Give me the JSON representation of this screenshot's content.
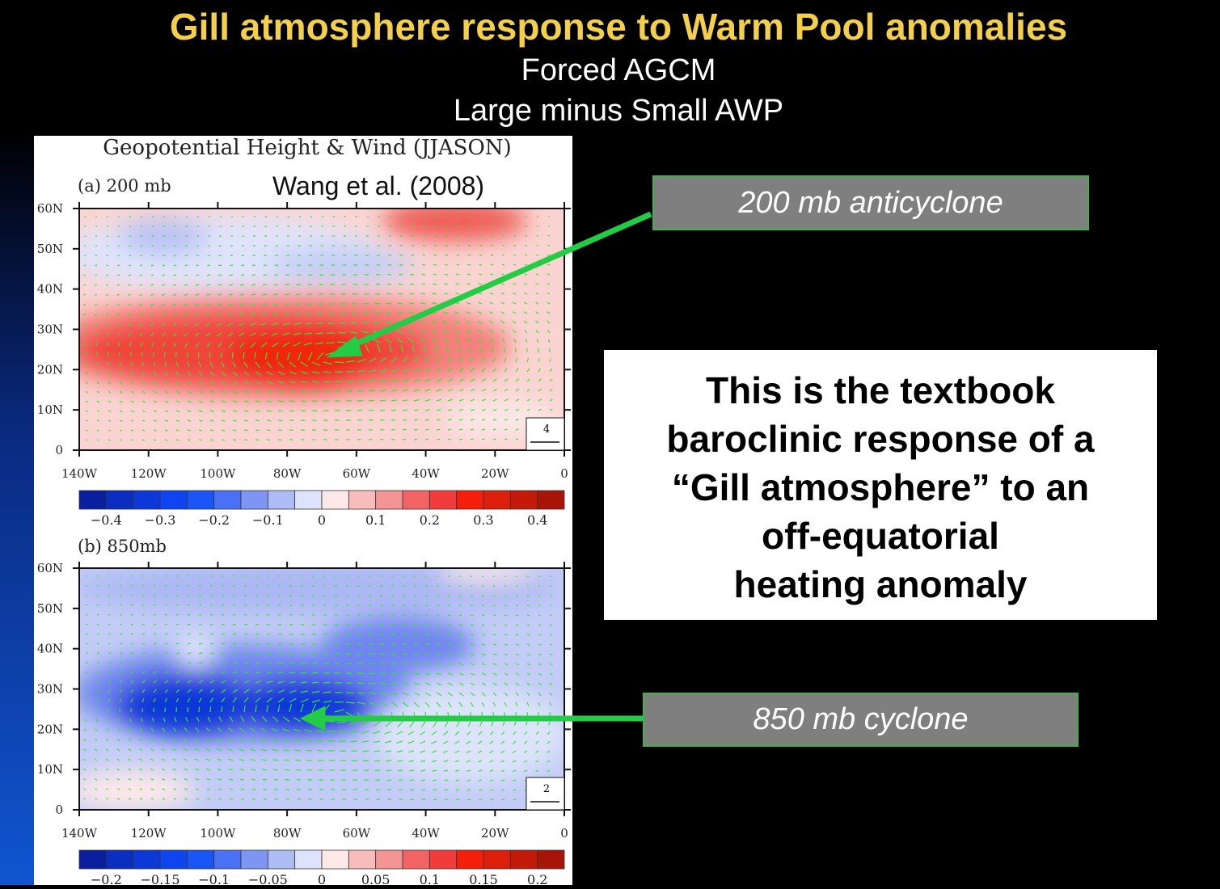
{
  "slide": {
    "title": "Gill atmosphere response to Warm Pool anomalies",
    "subtitle_lines": [
      "Forced AGCM",
      "Large minus Small AWP"
    ],
    "title_color": "#f3cf4a"
  },
  "figure": {
    "title": "Geopotential Height & Wind (JJASON)",
    "citation": "Wang et al. (2008)",
    "lon_ticks": [
      "140W",
      "120W",
      "100W",
      "80W",
      "60W",
      "40W",
      "20W",
      "0"
    ],
    "lat_ticks": [
      "60N",
      "50N",
      "40N",
      "30N",
      "20N",
      "10N",
      "0"
    ],
    "colorbar_colors": [
      "#0a1fa0",
      "#0b2ec0",
      "#0c38d8",
      "#0f45f0",
      "#1a55f5",
      "#4a70f5",
      "#7e96f3",
      "#adbcf5",
      "#dde3fb",
      "#fde8e8",
      "#f9bcbc",
      "#f59494",
      "#f26464",
      "#f23c3c",
      "#f51e0a",
      "#dc1e0a",
      "#c41a0a",
      "#a81408"
    ],
    "panels": [
      {
        "label": "(a) 200 mb",
        "colorbar_ticks": [
          "−0.4",
          "−0.3",
          "−0.2",
          "−0.1",
          "0",
          "0.1",
          "0.2",
          "0.3",
          "0.4"
        ],
        "ref_vector": "4",
        "feature": "anticyclone"
      },
      {
        "label": "(b) 850mb",
        "colorbar_ticks": [
          "−0.2",
          "−0.15",
          "−0.1",
          "−0.05",
          "0",
          "0.05",
          "0.1",
          "0.15",
          "0.2"
        ],
        "ref_vector": "2",
        "feature": "cyclone"
      }
    ]
  },
  "callouts": {
    "upper": "200 mb anticyclone",
    "lower": "850 mb cyclone",
    "arrow_color": "#22cc44"
  },
  "textbox": {
    "lines": [
      "This is the textbook",
      "baroclinic response of a",
      "“Gill atmosphere” to an",
      "off-equatorial",
      "heating anomaly"
    ]
  }
}
